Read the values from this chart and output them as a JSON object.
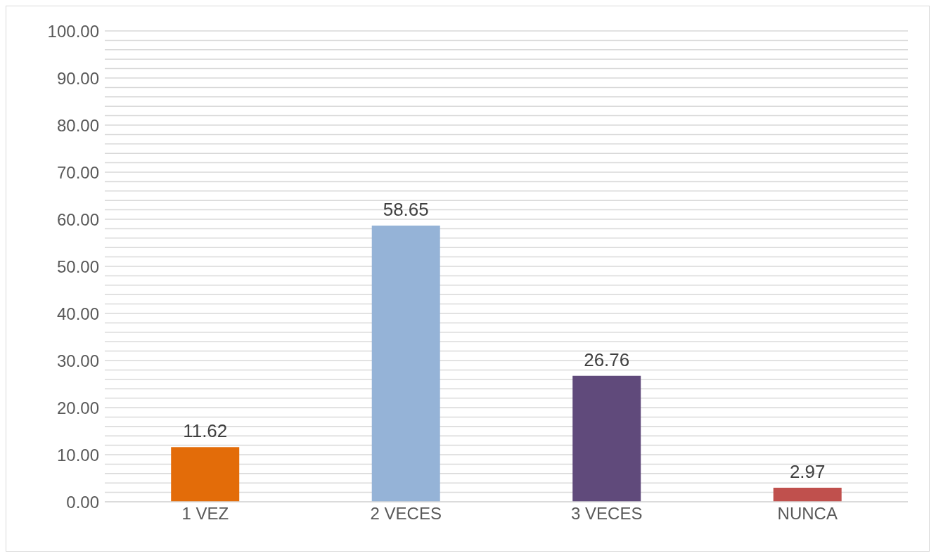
{
  "chart_data": {
    "type": "bar",
    "categories": [
      "1 VEZ",
      "2 VECES",
      "3 VECES",
      "NUNCA"
    ],
    "values": [
      11.62,
      58.65,
      26.76,
      2.97
    ],
    "colors": [
      "#e36c09",
      "#95b3d7",
      "#604a7b",
      "#c0504d"
    ],
    "data_labels": true,
    "grid": "y",
    "ylim": [
      0,
      100
    ],
    "yticks": [
      {
        "value": 0,
        "label": "0.00"
      },
      {
        "value": 2,
        "label": null
      },
      {
        "value": 4,
        "label": null
      },
      {
        "value": 6,
        "label": null
      },
      {
        "value": 8,
        "label": null
      },
      {
        "value": 10,
        "label": "10.00"
      },
      {
        "value": 12,
        "label": null
      },
      {
        "value": 14,
        "label": null
      },
      {
        "value": 16,
        "label": null
      },
      {
        "value": 18,
        "label": null
      },
      {
        "value": 20,
        "label": "20.00"
      },
      {
        "value": 22,
        "label": null
      },
      {
        "value": 24,
        "label": null
      },
      {
        "value": 26,
        "label": null
      },
      {
        "value": 28,
        "label": null
      },
      {
        "value": 30,
        "label": "30.00"
      },
      {
        "value": 32,
        "label": null
      },
      {
        "value": 34,
        "label": null
      },
      {
        "value": 36,
        "label": null
      },
      {
        "value": 38,
        "label": null
      },
      {
        "value": 40,
        "label": "40.00"
      },
      {
        "value": 42,
        "label": null
      },
      {
        "value": 44,
        "label": null
      },
      {
        "value": 46,
        "label": null
      },
      {
        "value": 48,
        "label": null
      },
      {
        "value": 50,
        "label": "50.00"
      },
      {
        "value": 52,
        "label": null
      },
      {
        "value": 54,
        "label": null
      },
      {
        "value": 56,
        "label": null
      },
      {
        "value": 58,
        "label": null
      },
      {
        "value": 60,
        "label": "60.00"
      },
      {
        "value": 62,
        "label": null
      },
      {
        "value": 64,
        "label": null
      },
      {
        "value": 66,
        "label": null
      },
      {
        "value": 68,
        "label": null
      },
      {
        "value": 70,
        "label": "70.00"
      },
      {
        "value": 72,
        "label": null
      },
      {
        "value": 74,
        "label": null
      },
      {
        "value": 76,
        "label": null
      },
      {
        "value": 78,
        "label": null
      },
      {
        "value": 80,
        "label": "80.00"
      },
      {
        "value": 82,
        "label": null
      },
      {
        "value": 84,
        "label": null
      },
      {
        "value": 86,
        "label": null
      },
      {
        "value": 88,
        "label": null
      },
      {
        "value": 90,
        "label": "90.00"
      },
      {
        "value": 92,
        "label": null
      },
      {
        "value": 94,
        "label": null
      },
      {
        "value": 96,
        "label": null
      },
      {
        "value": 98,
        "label": null
      },
      {
        "value": 100,
        "label": "100.00"
      }
    ]
  }
}
